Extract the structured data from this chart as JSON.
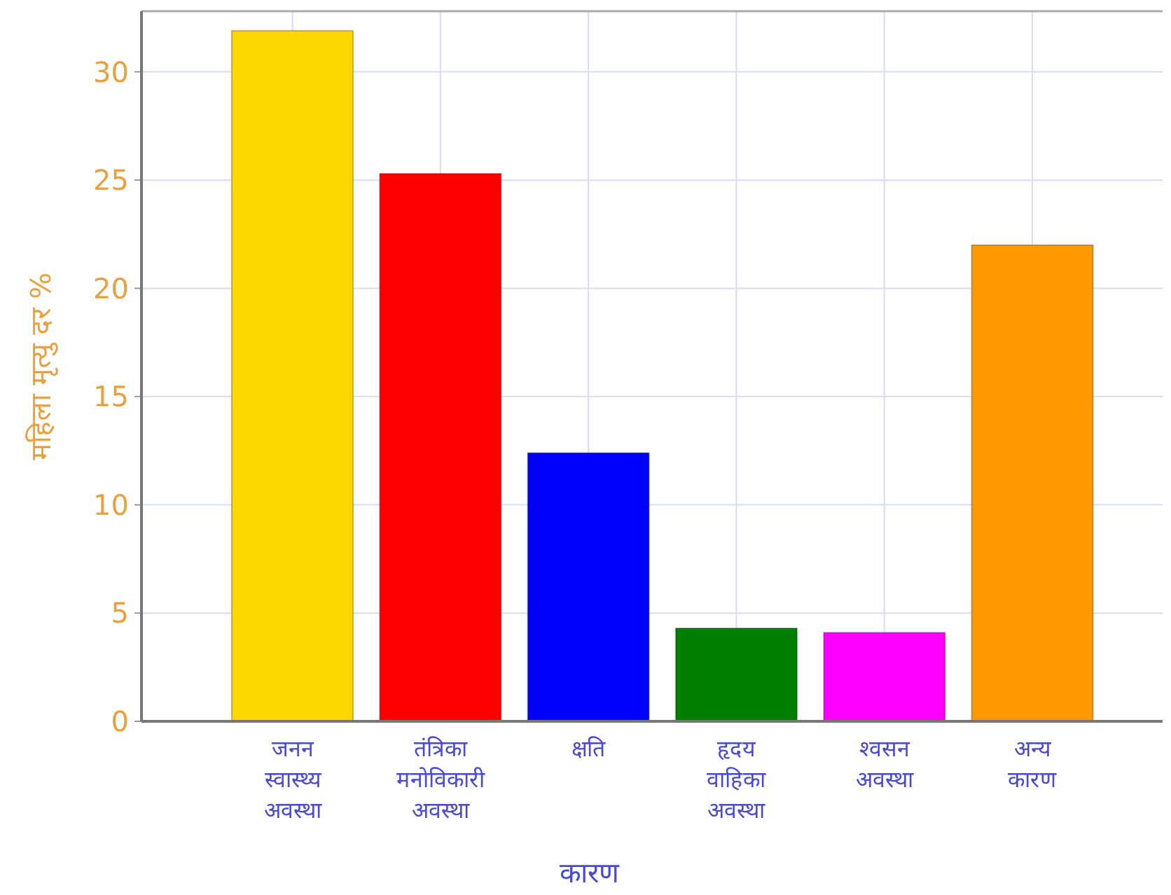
{
  "chart_data": {
    "type": "bar",
    "xlabel": "कारण",
    "ylabel": "महिला मृत्यु दर %",
    "categories": [
      "जनन स्वास्थ्य अवस्था",
      "तंत्रिका मनोविकारी अवस्था",
      "क्षति",
      "हृदय वाहिका अवस्था",
      "श्वसन अवस्था",
      "अन्य कारण"
    ],
    "values": [
      31.9,
      25.3,
      12.4,
      4.3,
      4.1,
      22.0
    ],
    "colors": [
      "#ffd700",
      "#ff0000",
      "#0000ff",
      "#008000",
      "#ff00ff",
      "#ff9900"
    ],
    "ylim": [
      0,
      32.8
    ],
    "yticks": [
      0,
      5,
      10,
      15,
      20,
      25,
      30
    ],
    "grid": true
  }
}
